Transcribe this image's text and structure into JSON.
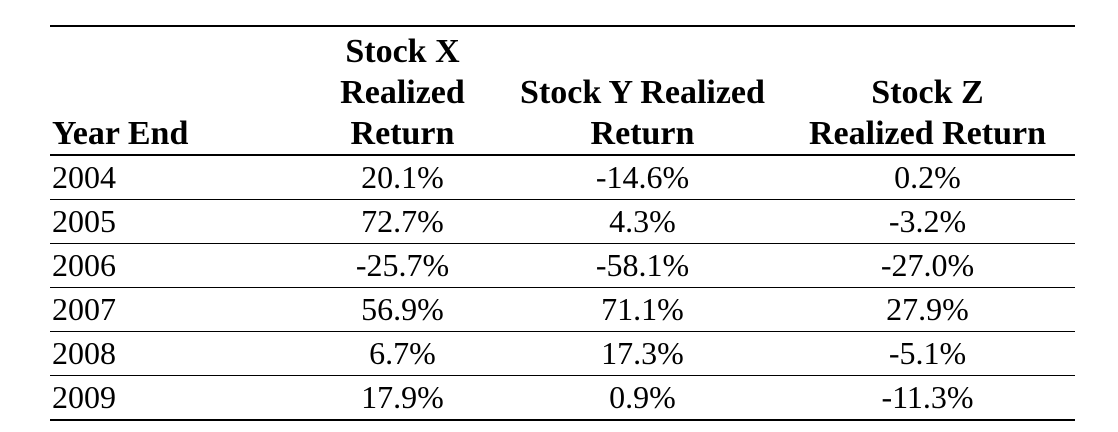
{
  "table": {
    "header": [
      [
        "Year End"
      ],
      [
        "Stock X",
        "Realized",
        "Return"
      ],
      [
        "Stock Y Realized",
        "Return"
      ],
      [
        "Stock Z",
        "Realized Return"
      ]
    ],
    "rows": [
      [
        "2004",
        "20.1%",
        "-14.6%",
        "0.2%"
      ],
      [
        "2005",
        "72.7%",
        "4.3%",
        "-3.2%"
      ],
      [
        "2006",
        "-25.7%",
        "-58.1%",
        "-27.0%"
      ],
      [
        "2007",
        "56.9%",
        "71.1%",
        "27.9%"
      ],
      [
        "2008",
        "6.7%",
        "17.3%",
        "-5.1%"
      ],
      [
        "2009",
        "17.9%",
        "0.9%",
        "-11.3%"
      ]
    ]
  }
}
